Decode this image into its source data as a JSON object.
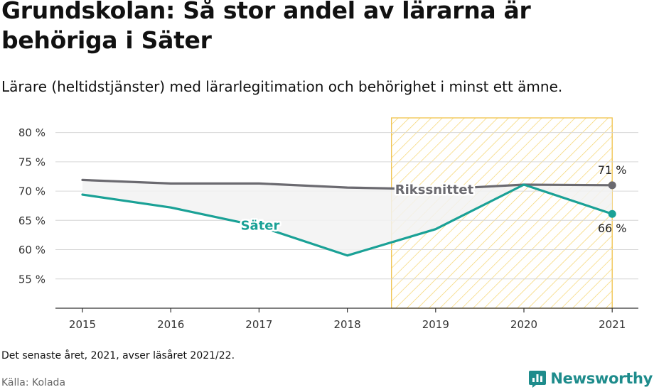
{
  "header": {
    "title": "Grundskolan: Så stor andel av lärarna är behöriga i Säter",
    "subtitle": "Lärare (heltidstjänster) med lärarlegitimation och behörighet i minst ett ämne."
  },
  "footer": {
    "note": "Det senaste året, 2021, avser läsåret 2021/22.",
    "source": "Källa: Kolada",
    "brand": "Newsworthy"
  },
  "colors": {
    "sater": "#1aa196",
    "riket": "#6b6a70",
    "highlight_stripe": "#f5d36b",
    "highlight_border": "#f0c24a",
    "gap_fill": "#f2f2f2"
  },
  "chart_data": {
    "type": "line",
    "x": [
      "2015",
      "2016",
      "2017",
      "2018",
      "2019",
      "2020",
      "2021"
    ],
    "series": [
      {
        "name": "Säter",
        "color": "#1aa196",
        "values": [
          69.4,
          67.2,
          64.0,
          59.0,
          63.5,
          71.1,
          66.1
        ]
      },
      {
        "name": "Rikssnittet",
        "color": "#6b6a70",
        "values": [
          71.9,
          71.3,
          71.3,
          70.6,
          70.3,
          71.1,
          71.0
        ]
      }
    ],
    "y_ticks": [
      55,
      60,
      65,
      70,
      75,
      80
    ],
    "y_tick_suffix": " %",
    "ylim": [
      50,
      82.5
    ],
    "end_labels": {
      "Säter": "66 %",
      "Rikssnittet": "71 %"
    },
    "highlight_range": [
      "2018.5",
      "2021"
    ],
    "grid": true
  }
}
